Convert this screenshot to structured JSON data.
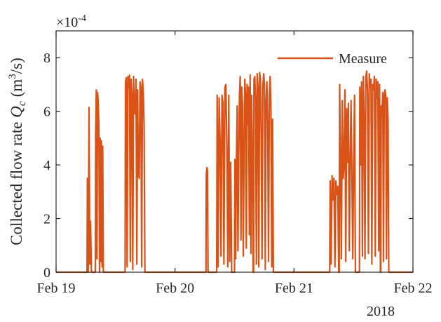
{
  "chart_data": {
    "type": "line",
    "ylabel_text": "Collected flow rate ",
    "ylabel_var": "Q",
    "ylabel_sub": "c",
    "ylabel_unit_pre": " (m",
    "ylabel_unit_sup": "3",
    "ylabel_unit_post": "/s)",
    "xlabel": "",
    "exponent_base": "×10",
    "exponent_power": "-4",
    "year_label": "2018",
    "ylim": [
      0,
      9
    ],
    "xlim": [
      0,
      3
    ],
    "yticks": [
      0,
      2,
      4,
      6,
      8
    ],
    "ytick_labels": [
      "0",
      "2",
      "4",
      "6",
      "8"
    ],
    "xticks": [
      0,
      1,
      2,
      3
    ],
    "xtick_labels": [
      "Feb 19",
      "Feb 20",
      "Feb 21",
      "Feb 22"
    ],
    "legend_position": "top-right",
    "grid": false,
    "series": [
      {
        "name": "Measure",
        "color": "#D95319",
        "bursts": [
          {
            "start": 0.26,
            "end": 0.3,
            "peaks": [
              3.5,
              0,
              6.15,
              0.3,
              1.9,
              0
            ]
          },
          {
            "start": 0.33,
            "end": 0.4,
            "peaks": [
              5.2,
              6.8,
              0.5,
              6.7,
              6.3,
              5.5,
              0,
              5.0,
              0.4,
              4.9,
              0.2,
              4.7,
              0
            ]
          },
          {
            "start": 0.58,
            "end": 0.75,
            "peaks": [
              7.1,
              7.25,
              0.2,
              7.3,
              6.9,
              7.35,
              0.4,
              7.2,
              6.6,
              0.1,
              7.3,
              6.1,
              5.9,
              7.2,
              0.3,
              6.8,
              3.6,
              3.5,
              7.1,
              6.9,
              0.2,
              7.2,
              6.7,
              5.5,
              0
            ]
          },
          {
            "start": 1.26,
            "end": 1.28,
            "peaks": [
              3.6,
              3.9,
              3.8,
              0
            ]
          },
          {
            "start": 1.35,
            "end": 1.48,
            "peaks": [
              6.6,
              0.2,
              6.5,
              5.0,
              0.6,
              6.6,
              6.3,
              0.3,
              6.9,
              7.0,
              4.8,
              0.2,
              6.6,
              0.4,
              4.1,
              0
            ]
          },
          {
            "start": 1.5,
            "end": 1.66,
            "peaks": [
              4.2,
              0.5,
              4.3,
              6.2,
              0.8,
              4.1,
              6.6,
              7.3,
              1.2,
              6.9,
              6.2,
              0.6,
              4.4,
              7.2,
              6.6,
              0.9,
              7.0,
              5.5,
              6.9,
              1.4,
              7.35,
              0.7,
              6.6,
              4.5,
              0
            ]
          },
          {
            "start": 1.66,
            "end": 1.83,
            "peaks": [
              7.2,
              7.3,
              6.5,
              0.3,
              7.4,
              6.9,
              0.2,
              7.45,
              7.2,
              5.0,
              0.5,
              6.9,
              7.4,
              7.0,
              0.1,
              6.4,
              7.1,
              5.5,
              0.4,
              6.6,
              7.3,
              6.1,
              0.2,
              5.7,
              0
            ]
          },
          {
            "start": 2.3,
            "end": 2.38,
            "peaks": [
              3.4,
              0.3,
              3.6,
              2.7,
              3.5,
              0.2,
              3.4,
              2.9,
              3.2,
              0
            ]
          },
          {
            "start": 2.38,
            "end": 2.52,
            "peaks": [
              7.0,
              4.3,
              0.5,
              6.4,
              3.5,
              4.0,
              6.8,
              0.4,
              6.1,
              4.1,
              6.3,
              0.8,
              4.0,
              6.4,
              3.6,
              0.5,
              4.2,
              6.6,
              0
            ]
          },
          {
            "start": 2.55,
            "end": 2.73,
            "peaks": [
              6.9,
              4.0,
              7.1,
              0.6,
              7.3,
              5.8,
              0.5,
              7.3,
              7.5,
              6.7,
              0.7,
              7.4,
              6.9,
              7.2,
              0.3,
              7.0,
              6.8,
              7.3,
              0.6,
              7.2,
              6.5,
              7.1,
              0.8,
              7.0,
              0
            ]
          },
          {
            "start": 2.73,
            "end": 2.8,
            "peaks": [
              6.2,
              5.8,
              6.7,
              0.4,
              6.6,
              6.8,
              6.6,
              0.5,
              6.5,
              5.7,
              0
            ]
          }
        ]
      }
    ]
  }
}
